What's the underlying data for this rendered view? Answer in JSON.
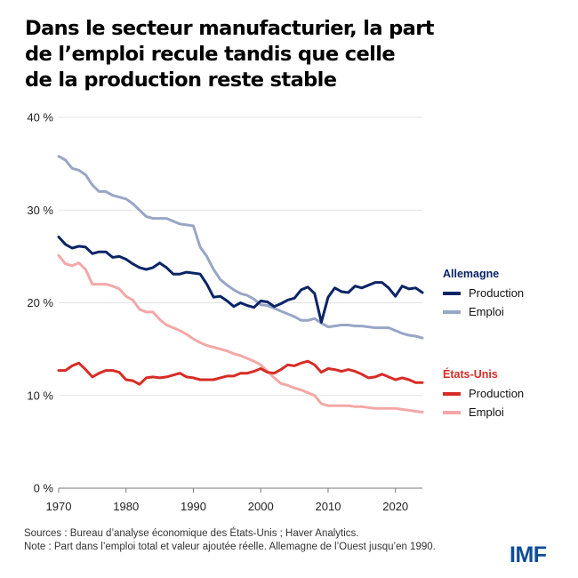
{
  "title": "Dans le secteur manufacturier, la part de l’emploi recule tandis que celle de la production reste stable",
  "title_lines": [
    "Dans le secteur manufacturier, la part",
    "de l’emploi recule tandis que celle",
    "de la production reste stable"
  ],
  "legend": {
    "groups": [
      {
        "name": "Allemagne",
        "color": "#0b2466",
        "items": [
          {
            "label": "Production",
            "color": "#0b2466"
          },
          {
            "label": "Emploi",
            "color": "#98a6c6"
          }
        ]
      },
      {
        "name": "États-Unis",
        "color": "#d72c26",
        "items": [
          {
            "label": "Production",
            "color": "#d72c26"
          },
          {
            "label": "Emploi",
            "color": "#f2a8a6"
          }
        ]
      }
    ]
  },
  "footer": {
    "sources": "Sources : Bureau d’analyse économique des États-Unis ; Haver Analytics.",
    "note": "Note : Part dans l’emploi total et valeur ajoutée réelle. Allemagne de l’Ouest jusqu’en 1990."
  },
  "logo": "IMF",
  "chart_data": {
    "type": "line",
    "title": "Dans le secteur manufacturier, la part de l’emploi recule tandis que celle de la production reste stable",
    "xlabel": "",
    "ylabel": "",
    "xlim": [
      1970,
      2024
    ],
    "ylim": [
      0,
      40
    ],
    "grid": true,
    "legend_position": "right",
    "x_ticks": [
      1970,
      1980,
      1990,
      2000,
      2010,
      2020
    ],
    "x_tick_labels": [
      "1970",
      "1980",
      "1990",
      "2000",
      "2010",
      "2020"
    ],
    "y_ticks": [
      0,
      10,
      20,
      30,
      40
    ],
    "y_tick_labels": [
      "0 %",
      "10 %",
      "20 %",
      "30 %",
      "40 %"
    ],
    "x": [
      1970,
      1971,
      1972,
      1973,
      1974,
      1975,
      1976,
      1977,
      1978,
      1979,
      1980,
      1981,
      1982,
      1983,
      1984,
      1985,
      1986,
      1987,
      1988,
      1989,
      1990,
      1991,
      1992,
      1993,
      1994,
      1995,
      1996,
      1997,
      1998,
      1999,
      2000,
      2001,
      2002,
      2003,
      2004,
      2005,
      2006,
      2007,
      2008,
      2009,
      2010,
      2011,
      2012,
      2013,
      2014,
      2015,
      2016,
      2017,
      2018,
      2019,
      2020,
      2021,
      2022,
      2023,
      2024
    ],
    "series": [
      {
        "name": "Allemagne – Emploi",
        "color": "#98a6c6",
        "values": [
          35.8,
          35.4,
          34.5,
          34.3,
          33.8,
          32.7,
          32.0,
          32.0,
          31.6,
          31.4,
          31.2,
          30.7,
          30.0,
          29.3,
          29.1,
          29.1,
          29.1,
          28.8,
          28.5,
          28.4,
          28.3,
          26.0,
          25.0,
          23.6,
          22.5,
          21.9,
          21.4,
          21.0,
          20.8,
          20.4,
          19.8,
          19.7,
          19.4,
          19.1,
          18.8,
          18.5,
          18.1,
          18.1,
          18.3,
          17.8,
          17.4,
          17.5,
          17.6,
          17.6,
          17.5,
          17.5,
          17.4,
          17.3,
          17.3,
          17.3,
          17.0,
          16.7,
          16.5,
          16.4,
          16.2
        ]
      },
      {
        "name": "Allemagne – Production",
        "color": "#0b2466",
        "values": [
          27.1,
          26.3,
          25.9,
          26.1,
          26.0,
          25.3,
          25.5,
          25.5,
          24.9,
          25.0,
          24.7,
          24.2,
          23.8,
          23.6,
          23.8,
          24.3,
          23.8,
          23.1,
          23.1,
          23.3,
          23.2,
          23.1,
          22.0,
          20.6,
          20.7,
          20.2,
          19.6,
          20.0,
          19.7,
          19.5,
          20.2,
          20.1,
          19.6,
          19.9,
          20.3,
          20.5,
          21.4,
          21.7,
          21.0,
          17.9,
          20.6,
          21.6,
          21.2,
          21.1,
          21.8,
          21.6,
          21.9,
          22.2,
          22.2,
          21.6,
          20.7,
          21.8,
          21.5,
          21.6,
          21.1
        ]
      },
      {
        "name": "États-Unis – Emploi",
        "color": "#f2a8a6",
        "values": [
          25.1,
          24.2,
          24.0,
          24.3,
          23.6,
          22.0,
          22.0,
          22.0,
          21.8,
          21.5,
          20.7,
          20.3,
          19.3,
          19.0,
          19.0,
          18.2,
          17.6,
          17.3,
          17.0,
          16.6,
          16.1,
          15.7,
          15.4,
          15.2,
          15.0,
          14.8,
          14.5,
          14.3,
          14.0,
          13.7,
          13.3,
          12.6,
          11.9,
          11.3,
          11.1,
          10.8,
          10.6,
          10.3,
          10.0,
          9.1,
          8.9,
          8.9,
          8.9,
          8.9,
          8.8,
          8.8,
          8.7,
          8.6,
          8.6,
          8.6,
          8.6,
          8.5,
          8.4,
          8.3,
          8.2
        ]
      },
      {
        "name": "États-Unis – Production",
        "color": "#d72c26",
        "values": [
          12.7,
          12.7,
          13.2,
          13.5,
          12.8,
          12.0,
          12.4,
          12.7,
          12.7,
          12.5,
          11.7,
          11.6,
          11.2,
          11.9,
          12.0,
          11.9,
          12.0,
          12.2,
          12.4,
          12.0,
          11.9,
          11.7,
          11.7,
          11.7,
          11.9,
          12.1,
          12.1,
          12.4,
          12.4,
          12.6,
          12.9,
          12.5,
          12.4,
          12.8,
          13.3,
          13.2,
          13.5,
          13.7,
          13.3,
          12.5,
          12.9,
          12.8,
          12.6,
          12.8,
          12.6,
          12.3,
          11.9,
          12.0,
          12.3,
          12.0,
          11.7,
          11.9,
          11.7,
          11.4,
          11.4
        ]
      }
    ]
  }
}
